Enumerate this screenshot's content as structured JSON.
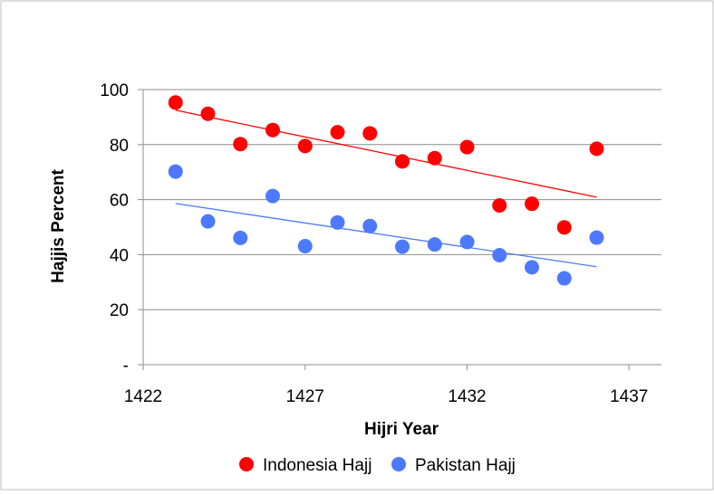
{
  "chart_data": {
    "type": "scatter",
    "title": "",
    "xlabel": "Hijri Year",
    "ylabel": "Hajjis Percent",
    "xlim": [
      1422,
      1438
    ],
    "ylim": [
      0,
      100
    ],
    "x_ticks": [
      1422,
      1427,
      1432,
      1437
    ],
    "y_ticks": [
      {
        "value": 0,
        "label": "-"
      },
      {
        "value": 20,
        "label": "20"
      },
      {
        "value": 40,
        "label": "40"
      },
      {
        "value": 60,
        "label": "60"
      },
      {
        "value": 80,
        "label": "80"
      },
      {
        "value": 100,
        "label": "100"
      }
    ],
    "grid": "horizontal",
    "legend_position": "bottom",
    "series": [
      {
        "name": "Indonesia Hajj",
        "color": "#ff0000",
        "x": [
          1423,
          1424,
          1425,
          1426,
          1427,
          1428,
          1429,
          1430,
          1431,
          1432,
          1433,
          1434,
          1435,
          1436
        ],
        "y": [
          95.3,
          91.2,
          80.2,
          85.3,
          79.5,
          84.5,
          84.1,
          73.9,
          75.1,
          79.1,
          57.9,
          58.5,
          49.9,
          78.5
        ],
        "trendline": {
          "x": [
            1423,
            1436
          ],
          "y": [
            92.5,
            60.9
          ]
        }
      },
      {
        "name": "Pakistan Hajj",
        "color": "#4d79ff",
        "x": [
          1423,
          1424,
          1425,
          1426,
          1427,
          1428,
          1429,
          1430,
          1431,
          1432,
          1433,
          1434,
          1435,
          1436
        ],
        "y": [
          70.2,
          52.1,
          46.1,
          61.3,
          43.1,
          51.7,
          50.4,
          42.9,
          43.7,
          44.6,
          39.8,
          35.4,
          31.4,
          46.2
        ],
        "trendline": {
          "x": [
            1423,
            1436
          ],
          "y": [
            58.6,
            35.6
          ]
        }
      }
    ]
  }
}
